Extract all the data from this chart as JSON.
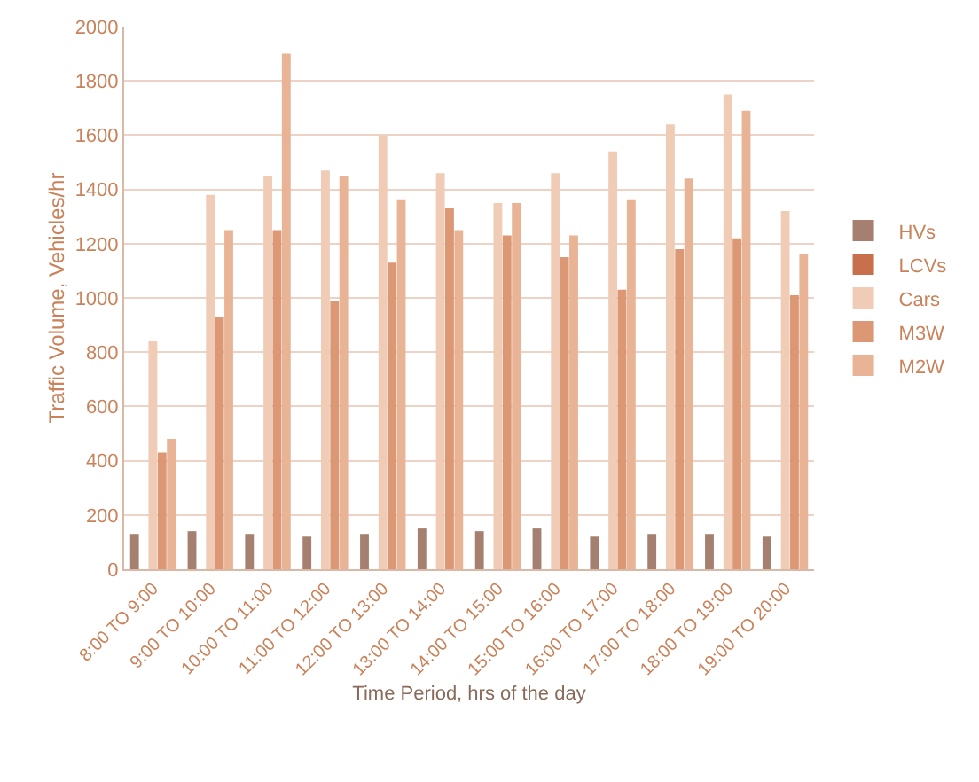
{
  "chart_data": {
    "type": "bar",
    "xlabel": "Time Period, hrs of the day",
    "ylabel": "Traffic Volume, Vehicles/hr",
    "categories": [
      "8:00 TO 9:00",
      "9:00 TO 10:00",
      "10:00 TO 11:00",
      "11:00 TO 12:00",
      "12:00 TO 13:00",
      "13:00 TO 14:00",
      "14:00 TO 15:00",
      "15:00 TO 16:00",
      "16:00 TO 17:00",
      "17:00 TO 18:00",
      "18:00 TO 19:00",
      "19:00 TO 20:00"
    ],
    "series": [
      {
        "name": "HVs",
        "color": "#a57f70",
        "values": [
          130,
          140,
          130,
          120,
          130,
          150,
          140,
          150,
          120,
          130,
          130,
          120
        ]
      },
      {
        "name": "LCVs",
        "color": "#c8704c",
        "values": [
          null,
          null,
          null,
          null,
          null,
          null,
          null,
          null,
          null,
          null,
          null,
          null
        ]
      },
      {
        "name": "Cars",
        "color": "#f0cbb5",
        "values": [
          840,
          1380,
          1450,
          1470,
          1600,
          1460,
          1350,
          1460,
          1540,
          1640,
          1750,
          1320
        ]
      },
      {
        "name": "M3W",
        "color": "#dc9874",
        "values": [
          430,
          930,
          1250,
          990,
          1130,
          1330,
          1230,
          1150,
          1030,
          1180,
          1220,
          1010
        ]
      },
      {
        "name": "M2W",
        "color": "#e9b496",
        "values": [
          480,
          1250,
          1900,
          1450,
          1360,
          1250,
          1350,
          1230,
          1360,
          1440,
          1690,
          1160
        ]
      }
    ],
    "ylim": [
      0,
      2000
    ],
    "yticks": [
      0,
      200,
      400,
      600,
      800,
      1000,
      1200,
      1400,
      1600,
      1800,
      2000
    ],
    "grid": "y",
    "legend": "right"
  }
}
